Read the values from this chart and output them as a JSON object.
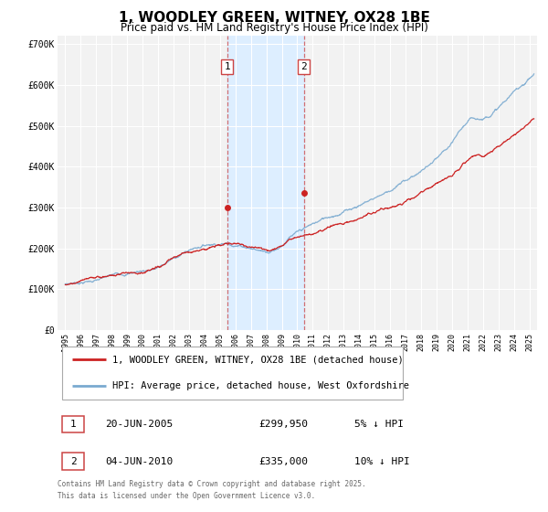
{
  "title": "1, WOODLEY GREEN, WITNEY, OX28 1BE",
  "subtitle": "Price paid vs. HM Land Registry's House Price Index (HPI)",
  "legend_line1": "1, WOODLEY GREEN, WITNEY, OX28 1BE (detached house)",
  "legend_line2": "HPI: Average price, detached house, West Oxfordshire",
  "footnote": "Contains HM Land Registry data © Crown copyright and database right 2025.\nThis data is licensed under the Open Government Licence v3.0.",
  "purchase1_label": "1",
  "purchase1_date": "20-JUN-2005",
  "purchase1_price": "£299,950",
  "purchase1_hpi": "5% ↓ HPI",
  "purchase2_label": "2",
  "purchase2_date": "04-JUN-2010",
  "purchase2_price": "£335,000",
  "purchase2_hpi": "10% ↓ HPI",
  "sale1_x": 2005.46,
  "sale1_y": 299950,
  "sale2_x": 2010.42,
  "sale2_y": 335000,
  "vline1_x": 2005.46,
  "vline2_x": 2010.42,
  "shade_xmin": 2005.46,
  "shade_xmax": 2010.42,
  "hpi_color": "#7aaad0",
  "price_color": "#cc2222",
  "shade_color": "#ddeeff",
  "background_color": "#f2f2f2",
  "grid_color": "#ffffff",
  "ylim": [
    0,
    720000
  ],
  "xlim": [
    1994.5,
    2025.5
  ],
  "yticks": [
    0,
    100000,
    200000,
    300000,
    400000,
    500000,
    600000,
    700000
  ],
  "ytick_labels": [
    "£0",
    "£100K",
    "£200K",
    "£300K",
    "£400K",
    "£500K",
    "£600K",
    "£700K"
  ],
  "xticks": [
    1995,
    1996,
    1997,
    1998,
    1999,
    2000,
    2001,
    2002,
    2003,
    2004,
    2005,
    2006,
    2007,
    2008,
    2009,
    2010,
    2011,
    2012,
    2013,
    2014,
    2015,
    2016,
    2017,
    2018,
    2019,
    2020,
    2021,
    2022,
    2023,
    2024,
    2025
  ]
}
